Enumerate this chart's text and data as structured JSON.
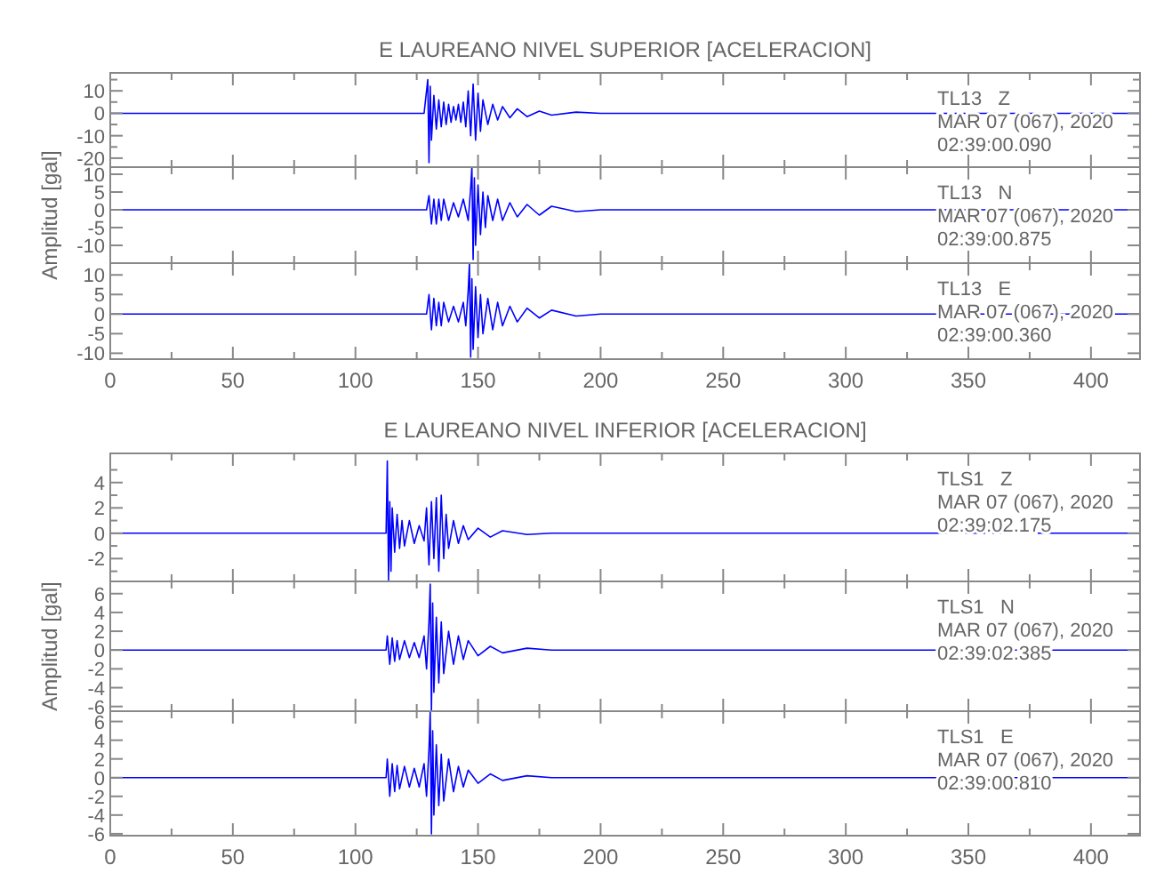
{
  "chart_data": [
    {
      "type": "line",
      "title": "E LAUREANO NIVEL SUPERIOR [ACELERACION]",
      "tick_labels": "y",
      "xlim": [
        0,
        420
      ],
      "xticks": [
        0,
        {
          "value": 25,
          "label": null
        },
        50,
        {
          "value": 75,
          "label": null
        },
        100,
        {
          "value": 125,
          "label": null
        },
        150,
        {
          "value": 175,
          "label": null
        },
        200,
        {
          "value": 225,
          "label": null
        },
        250,
        {
          "value": 275,
          "label": null
        },
        300,
        {
          "value": 325,
          "label": null
        },
        350,
        {
          "value": 375,
          "label": null
        },
        400
      ],
      "ylim": [
        -24,
        18
      ],
      "yticks": [
        -20,
        {
          "value": -15,
          "label": null
        },
        -10,
        {
          "value": -5,
          "label": null
        },
        0,
        {
          "value": 5,
          "label": null
        },
        10,
        {
          "value": 15,
          "label": null
        }
      ],
      "annotations": [
        "TL13   Z",
        "MAR 07 (067), 2020",
        "02:39:00.090"
      ],
      "series": [
        {
          "color": "#0000ff",
          "x": [
            0,
            128,
            129.5,
            130,
            130.5,
            131,
            132,
            133,
            134,
            135,
            136,
            137,
            138,
            139,
            140,
            141,
            142,
            143,
            144,
            145,
            146,
            147,
            148,
            149,
            150,
            151,
            152,
            154,
            156,
            158,
            160,
            163,
            166,
            170,
            175,
            180,
            190,
            200,
            420
          ],
          "values": [
            0,
            0,
            15,
            -22,
            12,
            -12,
            8,
            -7,
            6,
            -6,
            5,
            -5,
            4,
            -4,
            3,
            -3,
            4,
            -4,
            5,
            -6,
            10,
            -10,
            13,
            -12,
            9,
            -8,
            6,
            -5,
            4,
            -3,
            3,
            -2,
            2,
            -1.5,
            1,
            -0.8,
            0.5,
            0,
            0
          ]
        }
      ]
    },
    {
      "type": "line",
      "ylabel": "Amplitud [gal]",
      "tick_labels": "y",
      "xlim": [
        0,
        420
      ],
      "xticks": [
        0,
        {
          "value": 25,
          "label": null
        },
        50,
        {
          "value": 75,
          "label": null
        },
        100,
        {
          "value": 125,
          "label": null
        },
        150,
        {
          "value": 175,
          "label": null
        },
        200,
        {
          "value": 225,
          "label": null
        },
        250,
        {
          "value": 275,
          "label": null
        },
        300,
        {
          "value": 325,
          "label": null
        },
        350,
        {
          "value": 375,
          "label": null
        },
        400
      ],
      "ylim": [
        -15,
        12
      ],
      "yticks": [
        -10,
        -5,
        0,
        5,
        10
      ],
      "annotations": [
        "TL13   N",
        "MAR 07 (067), 2020",
        "02:39:00.875"
      ],
      "series": [
        {
          "color": "#0000ff",
          "x": [
            0,
            129,
            130,
            131,
            132,
            133,
            134,
            135,
            136,
            138,
            140,
            142,
            144,
            146,
            147,
            147.5,
            148,
            148.5,
            149,
            150,
            151,
            152,
            153,
            154,
            156,
            158,
            160,
            163,
            166,
            170,
            175,
            180,
            190,
            200,
            420
          ],
          "values": [
            0,
            0,
            4,
            -4,
            3,
            -4,
            3,
            -3,
            3,
            -3,
            2,
            -2,
            3,
            -3,
            6,
            12,
            -14,
            9,
            -10,
            7,
            -7,
            5,
            -5,
            4,
            -3,
            3,
            -3,
            2,
            -2,
            1.5,
            -1.5,
            1,
            -0.5,
            0,
            0
          ]
        }
      ]
    },
    {
      "type": "line",
      "tick_labels": true,
      "xlim": [
        0,
        420
      ],
      "xticks": [
        0,
        {
          "value": 25,
          "label": null
        },
        50,
        {
          "value": 75,
          "label": null
        },
        100,
        {
          "value": 125,
          "label": null
        },
        150,
        {
          "value": 175,
          "label": null
        },
        200,
        {
          "value": 225,
          "label": null
        },
        250,
        {
          "value": 275,
          "label": null
        },
        300,
        {
          "value": 325,
          "label": null
        },
        350,
        {
          "value": 375,
          "label": null
        },
        400
      ],
      "ylim": [
        -11.5,
        13
      ],
      "yticks": [
        -10,
        -5,
        0,
        5,
        10
      ],
      "annotations": [
        "TL13   E",
        "MAR 07 (067), 2020",
        "02:39:00.360"
      ],
      "series": [
        {
          "color": "#0000ff",
          "x": [
            0,
            129,
            130,
            131,
            132,
            133,
            134,
            135,
            136,
            138,
            140,
            142,
            144,
            145,
            146,
            146.5,
            147,
            147.5,
            148,
            149,
            150,
            151,
            152,
            154,
            156,
            158,
            160,
            163,
            166,
            170,
            175,
            180,
            190,
            200,
            420
          ],
          "values": [
            0,
            0,
            5,
            -4,
            4,
            -3,
            3,
            -3,
            3,
            -2,
            2,
            -2,
            3,
            -3,
            6,
            13,
            -11,
            9,
            -9,
            7,
            -6,
            5,
            -5,
            4,
            -4,
            3,
            -3,
            2,
            -2,
            1.5,
            -1,
            1,
            -0.5,
            0,
            0
          ]
        }
      ]
    },
    {
      "type": "line",
      "title": "E LAUREANO NIVEL INFERIOR [ACELERACION]",
      "tick_labels": "y",
      "xlim": [
        0,
        420
      ],
      "xticks": [
        0,
        {
          "value": 25,
          "label": null
        },
        50,
        {
          "value": 75,
          "label": null
        },
        100,
        {
          "value": 125,
          "label": null
        },
        150,
        {
          "value": 175,
          "label": null
        },
        200,
        {
          "value": 225,
          "label": null
        },
        250,
        {
          "value": 275,
          "label": null
        },
        300,
        {
          "value": 325,
          "label": null
        },
        350,
        {
          "value": 375,
          "label": null
        },
        400
      ],
      "ylim": [
        -3.8,
        6.3
      ],
      "yticks": [
        {
          "value": -3,
          "label": null
        },
        -2,
        {
          "value": -1,
          "label": null
        },
        0,
        {
          "value": 1,
          "label": null
        },
        2,
        {
          "value": 3,
          "label": null
        },
        4,
        {
          "value": 5,
          "label": null
        }
      ],
      "annotations": [
        "TLS1   Z",
        "MAR 07 (067), 2020",
        "02:39:02.175"
      ],
      "series": [
        {
          "color": "#0000ff",
          "x": [
            0,
            112.5,
            113,
            113.5,
            114,
            114.5,
            115,
            116,
            117,
            118,
            119,
            120,
            122,
            124,
            126,
            128,
            129,
            130,
            131,
            132,
            133,
            134,
            135,
            136,
            137,
            138,
            140,
            142,
            144,
            146,
            150,
            155,
            160,
            170,
            180,
            420
          ],
          "values": [
            0,
            0,
            5.7,
            -3.7,
            2.5,
            -3,
            2,
            -1.5,
            1.5,
            -1.2,
            1,
            -1,
            1,
            -0.8,
            0.6,
            -0.6,
            2,
            -2.5,
            2.5,
            -2,
            2.8,
            -3,
            3,
            -2,
            1.5,
            -1.2,
            1,
            -0.8,
            0.6,
            -0.5,
            0.4,
            -0.3,
            0.2,
            -0.1,
            0,
            0
          ]
        }
      ]
    },
    {
      "type": "line",
      "ylabel": "Amplitud [gal]",
      "tick_labels": "y",
      "xlim": [
        0,
        420
      ],
      "xticks": [
        0,
        {
          "value": 25,
          "label": null
        },
        50,
        {
          "value": 75,
          "label": null
        },
        100,
        {
          "value": 125,
          "label": null
        },
        150,
        {
          "value": 175,
          "label": null
        },
        200,
        {
          "value": 225,
          "label": null
        },
        250,
        {
          "value": 275,
          "label": null
        },
        300,
        {
          "value": 325,
          "label": null
        },
        350,
        {
          "value": 375,
          "label": null
        },
        400
      ],
      "ylim": [
        -6.5,
        7.3
      ],
      "yticks": [
        -6,
        -4,
        -2,
        0,
        2,
        4,
        6
      ],
      "annotations": [
        "TLS1   N",
        "MAR 07 (067), 2020",
        "02:39:02.385"
      ],
      "series": [
        {
          "color": "#0000ff",
          "x": [
            0,
            112.5,
            113,
            114,
            115,
            116,
            117,
            118,
            120,
            122,
            124,
            126,
            128,
            129,
            130,
            130.5,
            131,
            131.5,
            132,
            133,
            134,
            135,
            136,
            138,
            140,
            142,
            144,
            146,
            150,
            155,
            160,
            170,
            180,
            420
          ],
          "values": [
            0,
            0,
            1.5,
            -1.5,
            1.3,
            -1.2,
            1,
            -1,
            1,
            -0.8,
            0.8,
            -0.8,
            1.5,
            -2,
            3,
            7,
            -6.5,
            5,
            -4.5,
            3.5,
            -3.5,
            3,
            -2.5,
            2,
            -1.5,
            1.5,
            -1,
            1,
            -0.6,
            0.4,
            -0.3,
            0.2,
            0,
            0
          ]
        }
      ]
    },
    {
      "type": "line",
      "tick_labels": true,
      "xlim": [
        0,
        420
      ],
      "xticks": [
        0,
        {
          "value": 25,
          "label": null
        },
        50,
        {
          "value": 75,
          "label": null
        },
        100,
        {
          "value": 125,
          "label": null
        },
        150,
        {
          "value": 175,
          "label": null
        },
        200,
        {
          "value": 225,
          "label": null
        },
        250,
        {
          "value": 275,
          "label": null
        },
        300,
        {
          "value": 325,
          "label": null
        },
        350,
        {
          "value": 375,
          "label": null
        },
        400
      ],
      "ylim": [
        -6.2,
        7.1
      ],
      "yticks": [
        -6,
        -4,
        -2,
        0,
        2,
        4,
        6
      ],
      "annotations": [
        "TLS1   E",
        "MAR 07 (067), 2020",
        "02:39:00.810"
      ],
      "series": [
        {
          "color": "#0000ff",
          "x": [
            0,
            112.5,
            113,
            114,
            115,
            116,
            117,
            118,
            120,
            122,
            124,
            126,
            128,
            129,
            130,
            130.5,
            131,
            131.5,
            132,
            133,
            134,
            135,
            136,
            138,
            140,
            142,
            144,
            146,
            150,
            155,
            160,
            170,
            180,
            420
          ],
          "values": [
            0,
            0,
            2,
            -2,
            1.5,
            -1.5,
            1.3,
            -1.2,
            1.2,
            -1,
            1,
            -1,
            1.5,
            -2,
            3,
            7,
            -6,
            5,
            -4,
            3.5,
            -3,
            2.5,
            -2.5,
            2,
            -1.5,
            1.2,
            -1,
            0.8,
            -0.6,
            0.4,
            -0.3,
            0.2,
            0,
            0
          ]
        }
      ]
    }
  ]
}
